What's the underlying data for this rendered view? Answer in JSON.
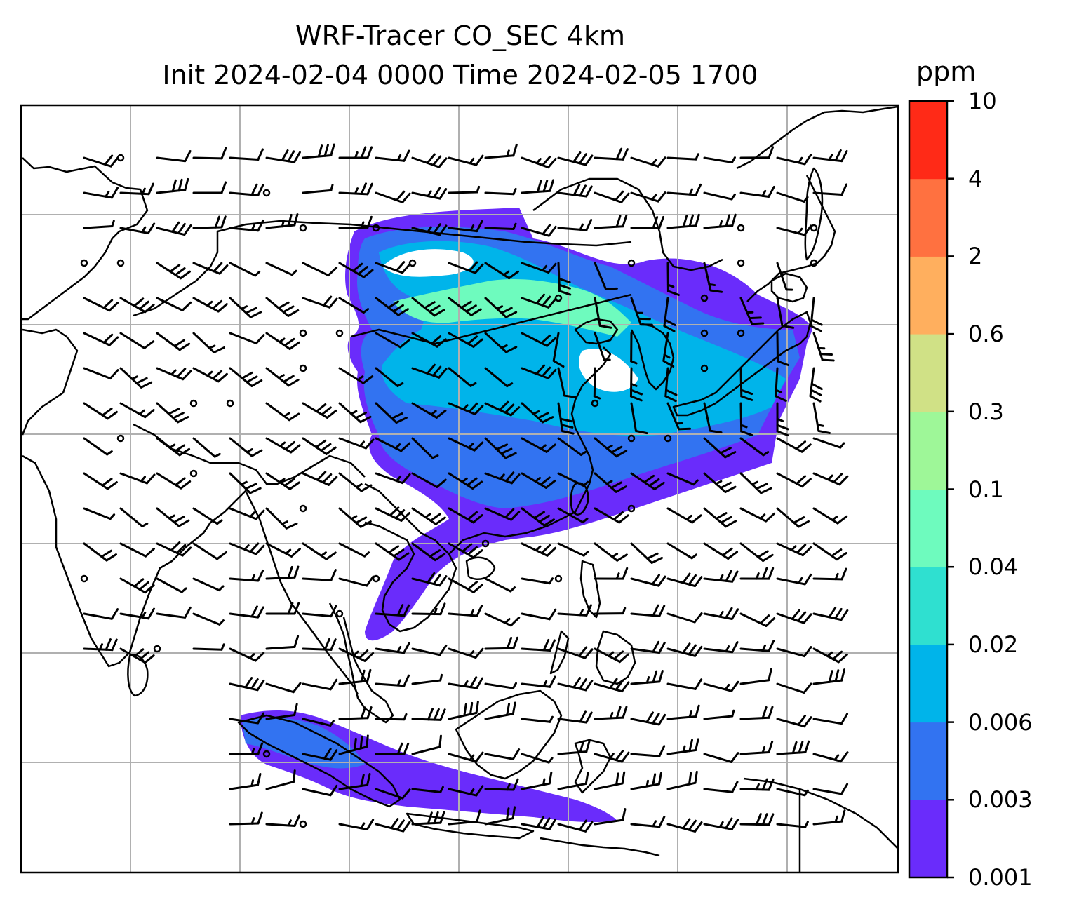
{
  "title": {
    "line1": "WRF-Tracer CO_SEC 4km",
    "line2": "Init 2024-02-04 0000 Time 2024-02-05 1700"
  },
  "colorbar": {
    "unit": "ppm",
    "ticks": [
      "0.001",
      "0.003",
      "0.006",
      "0.02",
      "0.04",
      "0.1",
      "0.3",
      "0.6",
      "2",
      "4",
      "10"
    ],
    "colors": [
      "#6a2cfb",
      "#3273f1",
      "#00b4ea",
      "#2fe0d0",
      "#6efbbe",
      "#9ef798",
      "#d0e186",
      "#ffaf5e",
      "#ff7140",
      "#ff2a17"
    ]
  },
  "map": {
    "region": "South and Southeast Asia, East Asia, Maritime Continent",
    "gridlines": true,
    "coastline_color": "#000000",
    "gridline_color": "#b0b0b0",
    "overlay": "wind barbs"
  }
}
